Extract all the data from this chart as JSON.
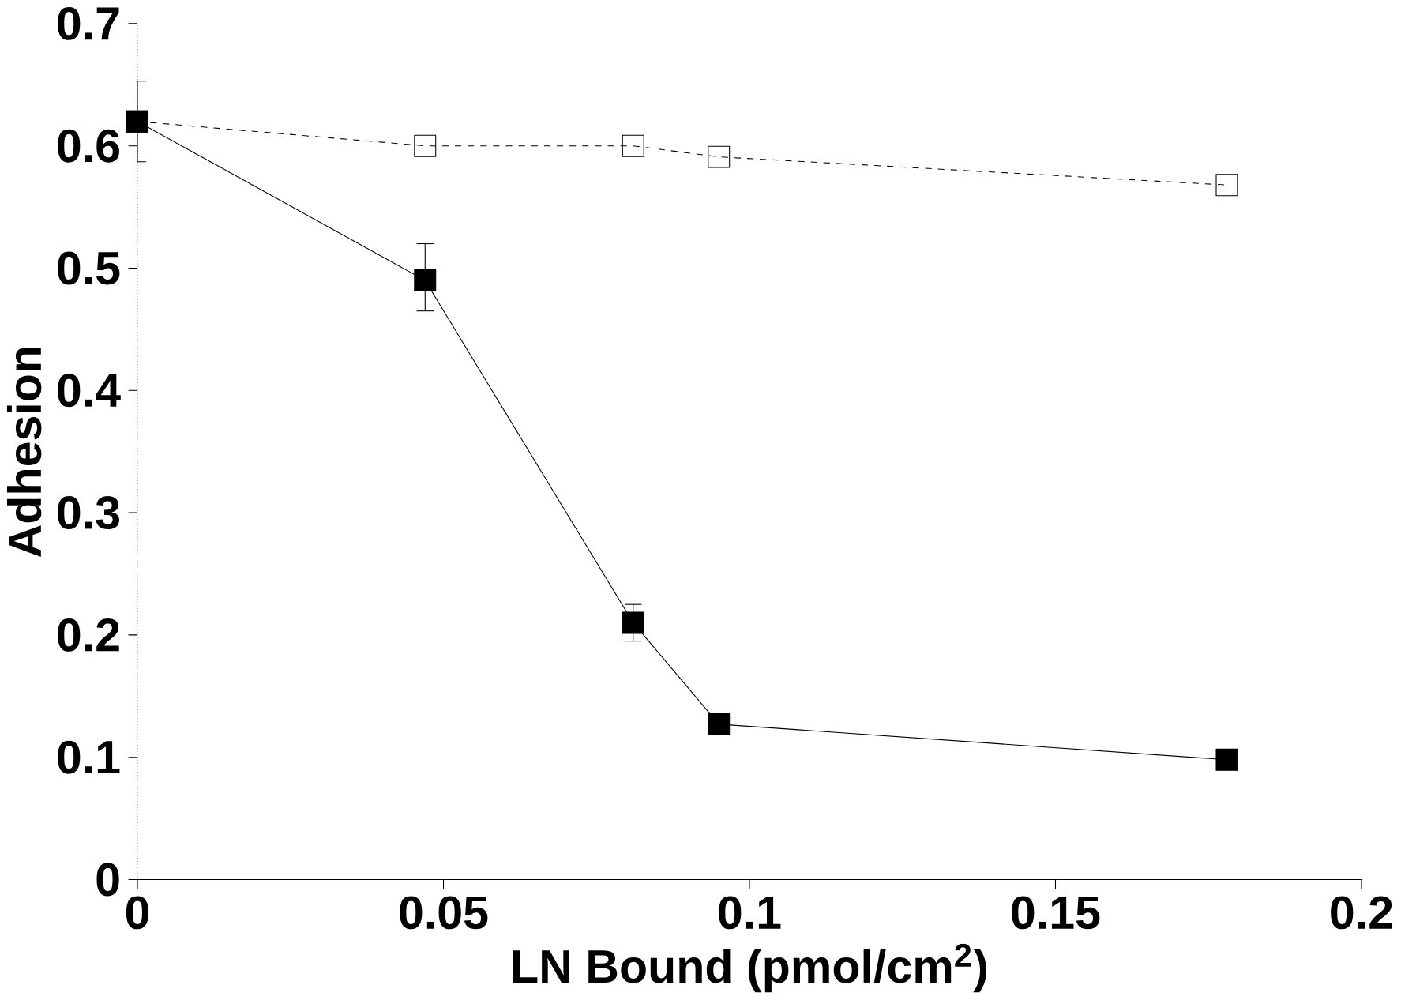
{
  "chart_data": {
    "type": "line",
    "xlabel": "LN Bound (pmol/cm$^{2}$)",
    "ylabel": "Adhesion",
    "xlim": [
      0,
      0.2
    ],
    "xticks": [
      0,
      0.05,
      0.1,
      0.15,
      0.2
    ],
    "ylim": [
      0,
      0.7
    ],
    "yticks": [
      0,
      0.1,
      0.2,
      0.3,
      0.4,
      0.5,
      0.6,
      0.7
    ],
    "marker": "square",
    "grid": false,
    "series": [
      {
        "color": "#000000",
        "line_style": "solid",
        "x": [
          0,
          0.047,
          0.081,
          0.095,
          0.178
        ],
        "values": [
          0.62,
          0.49,
          0.21,
          0.127,
          0.098
        ],
        "errors": [
          0.033,
          [
            0.465,
            0.52
          ],
          [
            0.195,
            0.225
          ],
          null,
          null
        ]
      },
      {
        "color": "#000000",
        "line_style": "dashed",
        "x": [
          0,
          0.047,
          0.081,
          0.095,
          0.178
        ],
        "values": [
          0.62,
          0.6,
          0.6,
          0.591,
          0.568
        ]
      }
    ]
  }
}
